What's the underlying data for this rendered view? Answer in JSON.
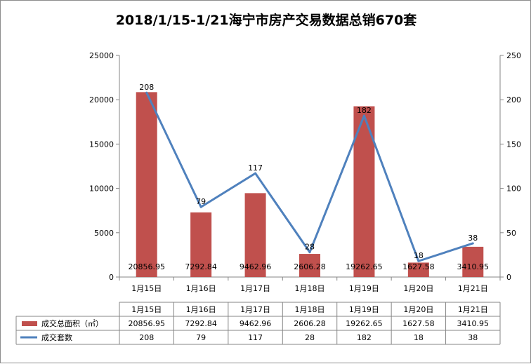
{
  "chart_data": {
    "type": "bar",
    "title": "2018/1/15-1/21海宁市房产交易数据总销670套",
    "categories": [
      "1月15日",
      "1月16日",
      "1月17日",
      "1月18日",
      "1月19日",
      "1月20日",
      "1月21日"
    ],
    "series": [
      {
        "name": "成交总面积（㎡）",
        "type": "bar",
        "axis": "left",
        "color": "#c0504d",
        "values": [
          20856.95,
          7292.84,
          9462.96,
          2606.28,
          19262.65,
          1627.58,
          3410.95
        ],
        "labels": [
          "20856.95",
          "7292.84",
          "9462.96",
          "2606.28",
          "19262.65",
          "1627.58",
          "3410.95"
        ]
      },
      {
        "name": "成交套数",
        "type": "line",
        "axis": "right",
        "color": "#4f81bd",
        "values": [
          208,
          79,
          117,
          28,
          182,
          18,
          38
        ],
        "labels": [
          "208",
          "79",
          "117",
          "28",
          "182",
          "18",
          "38"
        ]
      }
    ],
    "y_left": {
      "min": 0,
      "max": 25000,
      "ticks": [
        "0",
        "5000",
        "10000",
        "15000",
        "20000",
        "25000"
      ]
    },
    "y_right": {
      "min": 0,
      "max": 250,
      "ticks": [
        "0",
        "50",
        "100",
        "150",
        "200",
        "250"
      ]
    },
    "grid": false,
    "legend": "bottom data table"
  }
}
